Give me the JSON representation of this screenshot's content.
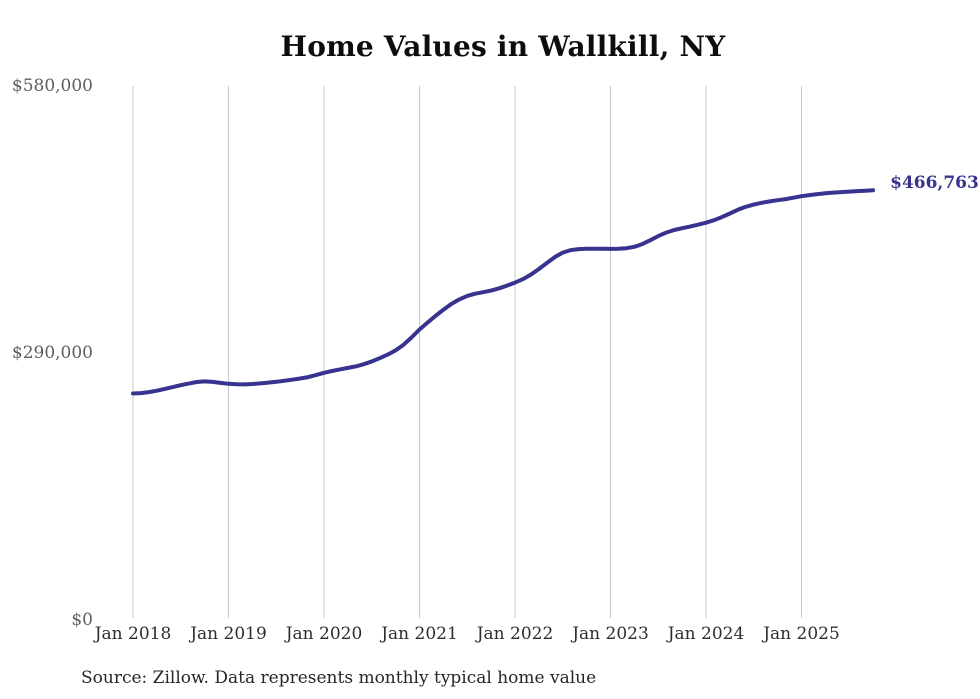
{
  "page": {
    "background": "#ffffff"
  },
  "chart": {
    "title": "Home Values in Wallkill, NY",
    "source_note": "Source: Zillow. Data represents monthly typical home value",
    "end_label": "$466,763",
    "colors": {
      "line": "#37338f",
      "end_label": "#37338f",
      "grid": "#c8c8c8",
      "title": "#0d0d0d",
      "y_axis_text": "#5e5e5e",
      "x_axis_text": "#2e2e2e",
      "source_text": "#262626"
    }
  },
  "chart_data": {
    "type": "line",
    "title": "Home Values in Wallkill, NY",
    "xlabel": "",
    "ylabel": "",
    "x_unit": "month",
    "x_start": "2018-01",
    "x_end": "2025-10",
    "ylim": [
      0,
      580000
    ],
    "grid": "vertical-only",
    "legend": "none",
    "xticks": [
      "Jan 2018",
      "Jan 2019",
      "Jan 2020",
      "Jan 2021",
      "Jan 2022",
      "Jan 2023",
      "Jan 2024",
      "Jan 2025"
    ],
    "xtick_month_interval": 12,
    "yticks": [
      {
        "value": 0,
        "label": "$0"
      },
      {
        "value": 290000,
        "label": "$290,000"
      },
      {
        "value": 580000,
        "label": "$580,000"
      }
    ],
    "end_value": 466763,
    "series": [
      {
        "name": "Monthly typical home value",
        "values": [
          246000,
          246500,
          247500,
          249000,
          251000,
          253000,
          255000,
          256800,
          258500,
          259200,
          258600,
          257500,
          256500,
          256000,
          255900,
          256300,
          257000,
          257800,
          258700,
          259800,
          261000,
          262300,
          263800,
          266000,
          268500,
          270500,
          272200,
          273800,
          275500,
          277800,
          280800,
          284300,
          288300,
          292800,
          299000,
          306800,
          315500,
          323000,
          330200,
          337000,
          343200,
          348200,
          352000,
          354400,
          356000,
          357800,
          360300,
          363200,
          366500,
          370300,
          375200,
          381200,
          387800,
          394200,
          399000,
          401800,
          402900,
          403300,
          403300,
          403200,
          403100,
          403200,
          403800,
          405400,
          408300,
          412500,
          417000,
          420800,
          423600,
          425600,
          427300,
          429300,
          431500,
          434200,
          437600,
          441500,
          445500,
          448800,
          451200,
          453100,
          454700,
          456000,
          457200,
          458700,
          460300,
          461500,
          462600,
          463500,
          464200,
          464800,
          465300,
          465800,
          466300,
          466763
        ]
      }
    ]
  }
}
